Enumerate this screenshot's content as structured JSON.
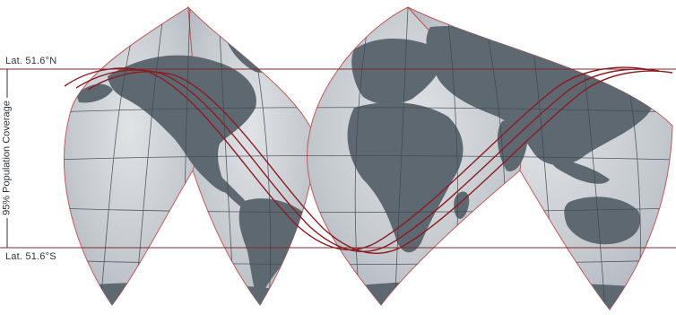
{
  "map": {
    "north_label": "Lat. 51.6°N",
    "south_label": "Lat. 51.6°S",
    "coverage_label": "95% Population Coverage",
    "projection": "interrupted-pseudoconic",
    "lobe_count": 4,
    "orbit_track_count": 3
  },
  "colors": {
    "ocean_fill": "#c4c9ce",
    "ocean_edge": "#aeb4ba",
    "land": "#5e6871",
    "graticule": "#3e4850",
    "lobe_outline": "#c25a5a",
    "orbit_track": "#8a1c22",
    "latitude_line": "#7d2a2a",
    "label_text": "#2f3438"
  }
}
